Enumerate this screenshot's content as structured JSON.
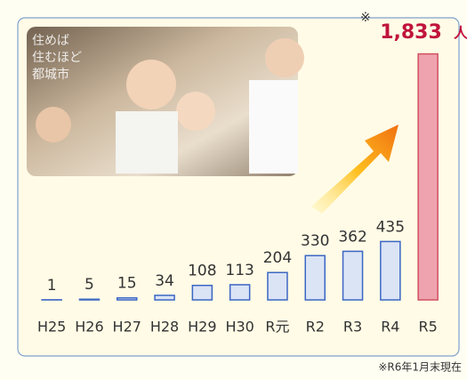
{
  "chart_data": {
    "type": "bar",
    "categories": [
      "H25",
      "H26",
      "H27",
      "H28",
      "H29",
      "H30",
      "R元",
      "R2",
      "R3",
      "R4",
      "R5"
    ],
    "values": [
      1,
      5,
      15,
      34,
      108,
      113,
      204,
      330,
      362,
      435,
      1833
    ],
    "value_labels": [
      "1",
      "5",
      "15",
      "34",
      "108",
      "113",
      "204",
      "330",
      "362",
      "435",
      "1,833"
    ],
    "colors": [
      "#dbe4f5",
      "#dbe4f5",
      "#dbe4f5",
      "#dbe4f5",
      "#dbe4f5",
      "#dbe4f5",
      "#dbe4f5",
      "#dbe4f5",
      "#dbe4f5",
      "#dbe4f5",
      "#eea3ae"
    ],
    "ylim": [
      0,
      1850
    ],
    "note_mark": "※",
    "unit": "人",
    "footnote": "※R6年1月末現在",
    "image_text": [
      "住めば",
      "住むほど",
      "都城市"
    ]
  }
}
